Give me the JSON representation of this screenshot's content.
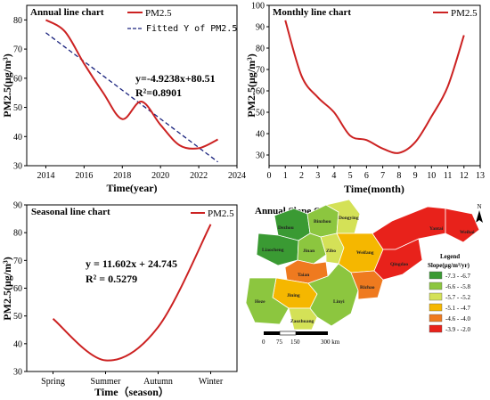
{
  "chart_data": [
    {
      "id": "annual",
      "type": "line",
      "title": "Annual line chart",
      "xlabel": "Time(year)",
      "ylabel": "PM2.5(μg/m³)",
      "xlim": [
        2013,
        2024
      ],
      "ylim": [
        30,
        85
      ],
      "xticks": [
        2014,
        2016,
        2018,
        2020,
        2022,
        2024
      ],
      "yticks": [
        30,
        40,
        50,
        60,
        70,
        80
      ],
      "legend": [
        "PM2.5",
        "Fitted Y of PM2.5"
      ],
      "series": [
        {
          "name": "PM2.5",
          "x": [
            2014,
            2015,
            2016,
            2017,
            2018,
            2019,
            2020,
            2021,
            2022,
            2023
          ],
          "y": [
            80,
            76,
            65,
            55,
            46,
            52,
            44,
            37,
            36,
            39
          ],
          "color": "#cc2222"
        },
        {
          "name": "Fitted Y of PM2.5",
          "x": [
            2014,
            2023
          ],
          "y": [
            75.6,
            31.3
          ],
          "color": "#1a237e",
          "dashed": true
        }
      ],
      "equation": "y=-4.9238x+80.51",
      "r2": "R²=0.8901"
    },
    {
      "id": "monthly",
      "type": "line",
      "title": "Monthly line chart",
      "xlabel": "Time(month)",
      "ylabel": "PM2.5(μg/m³)",
      "xlim": [
        0,
        13
      ],
      "ylim": [
        25,
        100
      ],
      "xticks": [
        0,
        1,
        2,
        3,
        4,
        5,
        6,
        7,
        8,
        9,
        10,
        11,
        12,
        13
      ],
      "yticks": [
        30,
        40,
        50,
        60,
        70,
        80,
        90,
        100
      ],
      "legend": [
        "PM2.5"
      ],
      "series": [
        {
          "name": "PM2.5",
          "x": [
            1,
            2,
            3,
            4,
            5,
            6,
            7,
            8,
            9,
            10,
            11,
            12
          ],
          "y": [
            93,
            67,
            57,
            50,
            39,
            37,
            33,
            31,
            36,
            48,
            62,
            86
          ],
          "color": "#cc2222"
        }
      ]
    },
    {
      "id": "seasonal",
      "type": "line",
      "title": "Seasonal line chart",
      "xlabel": "Time（season）",
      "ylabel": "PM2.5(μg/m³)",
      "categories": [
        "Spring",
        "Summer",
        "Autumn",
        "Winter"
      ],
      "ylim": [
        30,
        90
      ],
      "yticks": [
        30,
        40,
        50,
        60,
        70,
        80,
        90
      ],
      "legend": [
        "PM2.5"
      ],
      "series": [
        {
          "name": "PM2.5",
          "values": [
            49,
            34,
            46,
            83
          ],
          "color": "#cc2222"
        }
      ],
      "equation": "y = 11.602x + 24.745",
      "r2": "R² = 0.5279"
    }
  ],
  "map": {
    "title": "Annual Slope Graph",
    "north": "N",
    "cities": [
      "Dezhou",
      "Binzhou",
      "Dongying",
      "Liaocheng",
      "Jinan",
      "Zibo",
      "Weifang",
      "Yantai",
      "Weihai",
      "Qingdao",
      "Taian",
      "Jining",
      "Heze",
      "Zaozhuang",
      "Linyi",
      "Rizhao"
    ],
    "scale_ticks": [
      "0",
      "75",
      "150",
      "300 km"
    ],
    "legend_title": "Legend",
    "legend_unit": "Slope(μg/m³/yr)",
    "legend_classes": [
      {
        "label": "-7.3 - -6.7",
        "color": "#3a9a33"
      },
      {
        "label": "-6.6 - -5.8",
        "color": "#8cc63f"
      },
      {
        "label": "-5.7 - -5.2",
        "color": "#d4e157"
      },
      {
        "label": "-5.1 - -4.7",
        "color": "#f5b700"
      },
      {
        "label": "-4.6 - -4.0",
        "color": "#ef7a1f"
      },
      {
        "label": "-3.9 - -2.0",
        "color": "#e8221b"
      }
    ]
  }
}
